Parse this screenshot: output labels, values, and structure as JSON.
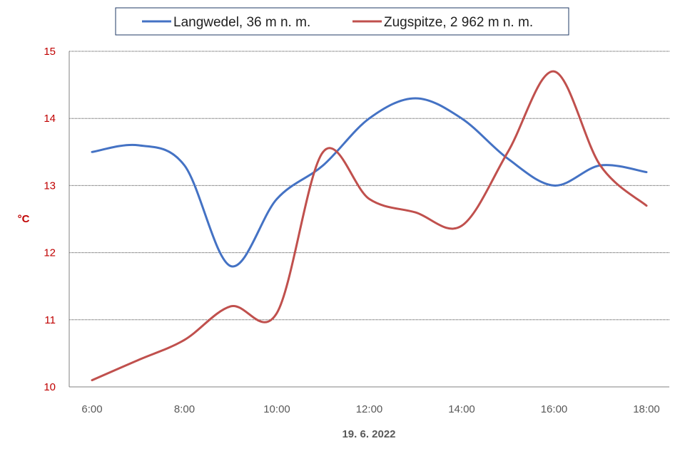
{
  "chart_data": {
    "type": "line",
    "x": [
      "6:00",
      "7:00",
      "8:00",
      "9:00",
      "10:00",
      "11:00",
      "12:00",
      "13:00",
      "14:00",
      "15:00",
      "16:00",
      "17:00",
      "18:00"
    ],
    "xticks": [
      "6:00",
      "8:00",
      "10:00",
      "12:00",
      "14:00",
      "16:00",
      "18:00"
    ],
    "series": [
      {
        "name": "Langwedel, 36 m n. m.",
        "color": "#4472c4",
        "values": [
          13.5,
          13.6,
          13.3,
          11.8,
          12.8,
          13.3,
          14.0,
          14.3,
          14.0,
          13.4,
          13.0,
          13.3,
          13.2
        ]
      },
      {
        "name": "Zugspitze, 2 962 m n. m.",
        "color": "#c0504d",
        "values": [
          10.1,
          10.4,
          10.7,
          11.2,
          11.1,
          13.5,
          12.8,
          12.6,
          12.4,
          13.5,
          14.7,
          13.3,
          12.7
        ]
      }
    ],
    "xlabel": "19. 6. 2022",
    "ylabel": "°C",
    "ylim": [
      10,
      15
    ],
    "yticks": [
      10,
      11,
      12,
      13,
      14,
      15
    ],
    "grid": true,
    "legend": "top-center",
    "colors": {
      "tick_y": "#c00000",
      "tick_x": "#595959",
      "grid": "#404040",
      "legend_border": "#1f3864"
    }
  }
}
